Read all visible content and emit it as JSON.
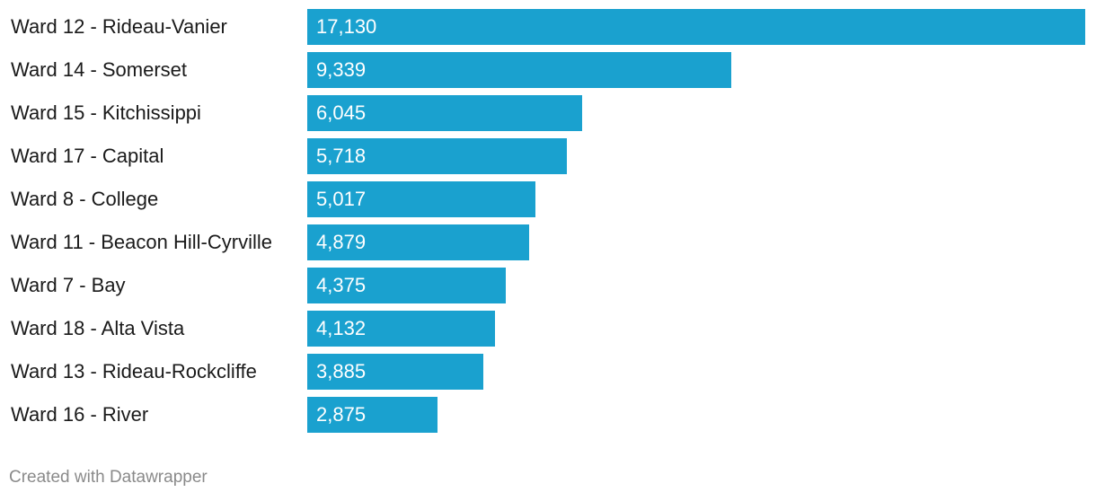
{
  "chart_data": {
    "type": "bar",
    "orientation": "horizontal",
    "categories": [
      "Ward 12 - Rideau-Vanier",
      "Ward 14 - Somerset",
      "Ward 15 - Kitchissippi",
      "Ward 17 - Capital",
      "Ward 8 - College",
      "Ward 11 - Beacon Hill-Cyrville",
      "Ward 7 - Bay",
      "Ward 18 - Alta Vista",
      "Ward 13 - Rideau-Rockcliffe",
      "Ward 16 - River"
    ],
    "values": [
      17130,
      9339,
      6045,
      5718,
      5017,
      4879,
      4375,
      4132,
      3885,
      2875
    ],
    "value_labels": [
      "17,130",
      "9,339",
      "6,045",
      "5,718",
      "5,017",
      "4,879",
      "4,375",
      "4,132",
      "3,885",
      "2,875"
    ],
    "xlim": [
      0,
      17130
    ],
    "grid": false,
    "legend": "none",
    "bar_color": "#1aa1cf"
  },
  "footer": {
    "credit": "Created with Datawrapper"
  }
}
